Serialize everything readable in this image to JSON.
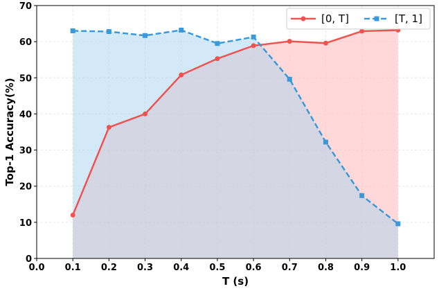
{
  "chart_data": {
    "type": "line",
    "xlabel": "T (s)",
    "ylabel": "Top-1 Accuracy(%)",
    "xlim": [
      0.0,
      1.1
    ],
    "ylim": [
      0,
      70
    ],
    "xticks": [
      "0.0",
      "0.1",
      "0.2",
      "0.3",
      "0.4",
      "0.5",
      "0.6",
      "0.7",
      "0.8",
      "0.9",
      "1.0"
    ],
    "yticks": [
      "0",
      "10",
      "20",
      "30",
      "40",
      "50",
      "60",
      "70"
    ],
    "grid": true,
    "legend_position": "top-right",
    "x": [
      0.1,
      0.2,
      0.3,
      0.4,
      0.5,
      0.6,
      0.7,
      0.8,
      0.9,
      1.0
    ],
    "series": [
      {
        "name": "[0, T]",
        "values": [
          12.0,
          36.3,
          40.0,
          50.8,
          55.3,
          58.9,
          60.1,
          59.6,
          62.9,
          63.2
        ],
        "color": "#ef5350",
        "fill_color": "#ffb3b3",
        "line_style": "solid",
        "marker": "circle"
      },
      {
        "name": "[T, 1]",
        "values": [
          63.0,
          62.8,
          61.7,
          63.2,
          59.5,
          61.3,
          49.6,
          32.2,
          17.4,
          9.6
        ],
        "color": "#3a9ad9",
        "fill_color": "#a9d3f0",
        "line_style": "dashed",
        "marker": "square"
      }
    ]
  }
}
